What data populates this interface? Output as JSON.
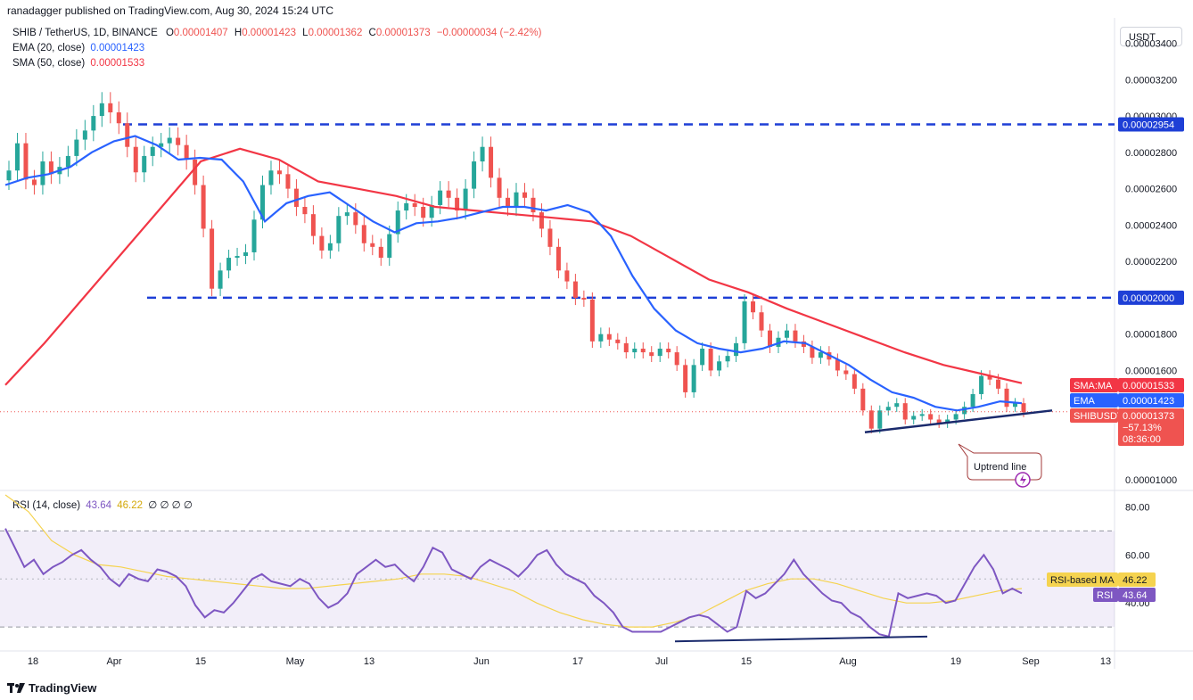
{
  "header": {
    "published": "ranadagger published on TradingView.com, Aug 30, 2024 15:24 UTC"
  },
  "legend": {
    "symbol": "SHIB / TetherUS, 1D, BINANCE",
    "o_label": "O",
    "o": "0.00001407",
    "h_label": "H",
    "h": "0.00001423",
    "l_label": "L",
    "l": "0.00001362",
    "c_label": "C",
    "c": "0.00001373",
    "change": "−0.00000034 (−2.42%)",
    "ema_label": "EMA (20, close)",
    "ema": "0.00001423",
    "sma_label": "SMA (50, close)",
    "sma": "0.00001533",
    "rsi_label": "RSI (14, close)",
    "rsi": "43.64",
    "rsi_ma": "46.22",
    "rsi_extra": "∅ ∅ ∅ ∅"
  },
  "currency_button": "USDT",
  "footer": {
    "brand": "TradingView",
    "logo": "tradingview-logo-icon"
  },
  "colors": {
    "up": "#26a69a",
    "down": "#ef5350",
    "ema": "#2962ff",
    "sma": "#f23645",
    "level": "#1e3fd6",
    "rsi": "#7e57c2",
    "rsi_ma": "#f5d34f",
    "trend": "#1a2a6c"
  },
  "chart_data": [
    {
      "type": "candlestick",
      "title": "SHIB / TetherUS, 1D, BINANCE",
      "x_ticks": [
        "18",
        "Apr",
        "15",
        "May",
        "13",
        "Jun",
        "17",
        "Jul",
        "15",
        "Aug",
        "19",
        "Sep",
        "13"
      ],
      "y_ticks": [
        "0.00003400",
        "0.00003200",
        "0.00003000",
        "0.00002800",
        "0.00002600",
        "0.00002400",
        "0.00002200",
        "0.00001800",
        "0.00001600",
        "0.00001000"
      ],
      "ylim": [
        9.4e-06,
        3.54e-05
      ],
      "levels": [
        {
          "label": "0.00002954",
          "value": 2.954e-05
        },
        {
          "label": "0.00002000",
          "value": 2e-05
        }
      ],
      "annotations": [
        "Uptrend line"
      ],
      "badges": [
        {
          "label": "SMA:MA",
          "value": "0.00001533"
        },
        {
          "label": "EMA",
          "value": "0.00001423"
        },
        {
          "label": "SHIBUSDT",
          "value": "0.00001373",
          "change": "−57.13%",
          "countdown": "08:36:00"
        }
      ],
      "series": [
        {
          "name": "SHIBUSDT",
          "close": [
            2.7e-05,
            2.85e-05,
            2.65e-05,
            2.62e-05,
            2.75e-05,
            2.68e-05,
            2.72e-05,
            2.78e-05,
            2.87e-05,
            2.92e-05,
            3e-05,
            3.07e-05,
            3.02e-05,
            2.96e-05,
            2.83e-05,
            2.69e-05,
            2.78e-05,
            2.83e-05,
            2.85e-05,
            2.88e-05,
            2.84e-05,
            2.76e-05,
            2.62e-05,
            2.38e-05,
            2.05e-05,
            2.15e-05,
            2.22e-05,
            2.23e-05,
            2.25e-05,
            2.43e-05,
            2.62e-05,
            2.7e-05,
            2.68e-05,
            2.6e-05,
            2.5e-05,
            2.46e-05,
            2.34e-05,
            2.26e-05,
            2.3e-05,
            2.45e-05,
            2.47e-05,
            2.4e-05,
            2.3e-05,
            2.28e-05,
            2.22e-05,
            2.35e-05,
            2.48e-05,
            2.52e-05,
            2.5e-05,
            2.44e-05,
            2.51e-05,
            2.59e-05,
            2.55e-05,
            2.48e-05,
            2.6e-05,
            2.75e-05,
            2.83e-05,
            2.66e-05,
            2.55e-05,
            2.5e-05,
            2.58e-05,
            2.55e-05,
            2.47e-05,
            2.38e-05,
            2.28e-05,
            2.15e-05,
            2.09e-05,
            2e-05,
            1.99e-05,
            1.76e-05,
            1.8e-05,
            1.77e-05,
            1.75e-05,
            1.7e-05,
            1.72e-05,
            1.7e-05,
            1.68e-05,
            1.72e-05,
            1.7e-05,
            1.63e-05,
            1.48e-05,
            1.63e-05,
            1.72e-05,
            1.6e-05,
            1.65e-05,
            1.68e-05,
            1.75e-05,
            1.98e-05,
            1.92e-05,
            1.82e-05,
            1.73e-05,
            1.78e-05,
            1.82e-05,
            1.76e-05,
            1.73e-05,
            1.67e-05,
            1.7e-05,
            1.66e-05,
            1.6e-05,
            1.58e-05,
            1.5e-05,
            1.38e-05,
            1.28e-05,
            1.38e-05,
            1.4e-05,
            1.42e-05,
            1.33e-05,
            1.35e-05,
            1.36e-05,
            1.33e-05,
            1.31e-05,
            1.33e-05,
            1.36e-05,
            1.4e-05,
            1.47e-05,
            1.57e-05,
            1.55e-05,
            1.5e-05,
            1.4e-05,
            1.42e-05,
            1.37e-05
          ]
        },
        {
          "name": "EMA (20, close)",
          "values": [
            2.62e-05,
            2.66e-05,
            2.68e-05,
            2.72e-05,
            2.8e-05,
            2.86e-05,
            2.89e-05,
            2.84e-05,
            2.76e-05,
            2.77e-05,
            2.76e-05,
            2.64e-05,
            2.42e-05,
            2.52e-05,
            2.56e-05,
            2.58e-05,
            2.5e-05,
            2.42e-05,
            2.36e-05,
            2.41e-05,
            2.42e-05,
            2.44e-05,
            2.47e-05,
            2.5e-05,
            2.5e-05,
            2.48e-05,
            2.51e-05,
            2.47e-05,
            2.34e-05,
            2.12e-05,
            1.94e-05,
            1.82e-05,
            1.75e-05,
            1.72e-05,
            1.7e-05,
            1.72e-05,
            1.76e-05,
            1.75e-05,
            1.69e-05,
            1.63e-05,
            1.55e-05,
            1.48e-05,
            1.45e-05,
            1.4e-05,
            1.38e-05,
            1.4e-05,
            1.43e-05,
            1.42e-05
          ]
        },
        {
          "name": "SMA (50, close)",
          "values": [
            1.52e-05,
            1.75e-05,
            2e-05,
            2.25e-05,
            2.5e-05,
            2.75e-05,
            2.82e-05,
            2.76e-05,
            2.64e-05,
            2.6e-05,
            2.56e-05,
            2.5e-05,
            2.48e-05,
            2.46e-05,
            2.44e-05,
            2.42e-05,
            2.34e-05,
            2.22e-05,
            2.1e-05,
            2.03e-05,
            1.94e-05,
            1.86e-05,
            1.78e-05,
            1.7e-05,
            1.63e-05,
            1.58e-05,
            1.53e-05
          ]
        }
      ]
    },
    {
      "type": "line",
      "title": "RSI (14, close)",
      "y_ticks": [
        "80.00",
        "60.00",
        "40.00"
      ],
      "ylim": [
        20,
        85
      ],
      "bands": [
        30,
        70
      ],
      "annotations": [
        "bullish divergence line"
      ],
      "badges": [
        {
          "label": "RSI-based MA",
          "value": "46.22"
        },
        {
          "label": "RSI",
          "value": "43.64"
        }
      ],
      "series": [
        {
          "name": "RSI",
          "values": [
            71,
            63,
            55,
            58,
            52,
            55,
            57,
            60,
            62,
            58,
            55,
            50,
            47,
            52,
            50,
            49,
            54,
            53,
            51,
            47,
            39,
            34,
            37,
            36,
            40,
            45,
            50,
            52,
            49,
            48,
            47,
            50,
            48,
            42,
            38,
            40,
            44,
            52,
            55,
            58,
            55,
            56,
            52,
            49,
            55,
            63,
            61,
            54,
            52,
            50,
            55,
            58,
            56,
            54,
            51,
            55,
            60,
            62,
            56,
            52,
            50,
            48,
            43,
            40,
            36,
            30,
            28,
            28,
            28,
            28,
            30,
            32,
            34,
            35,
            34,
            31,
            28,
            30,
            45,
            42,
            44,
            48,
            52,
            58,
            52,
            48,
            44,
            41,
            40,
            36,
            34,
            30,
            27,
            26,
            44,
            42,
            43,
            44,
            43,
            40,
            41,
            48,
            55,
            60,
            54,
            44,
            46,
            44
          ]
        },
        {
          "name": "RSI-based MA",
          "values": [
            85,
            78,
            66,
            60,
            56,
            55,
            53,
            51,
            50,
            49,
            48,
            47,
            46,
            46,
            47,
            48,
            49,
            50,
            52,
            52,
            51,
            48,
            45,
            40,
            36,
            33,
            31,
            30,
            30,
            32,
            35,
            40,
            45,
            48,
            50,
            50,
            48,
            45,
            42,
            40,
            40,
            41,
            43,
            45,
            46
          ]
        }
      ]
    }
  ]
}
